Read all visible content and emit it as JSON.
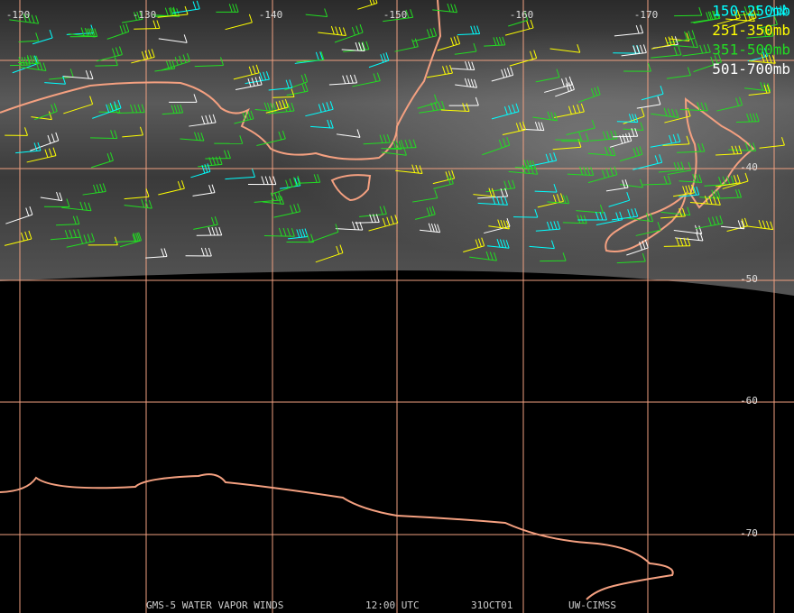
{
  "longitude_labels": [
    "-120",
    "-130",
    "-140",
    "-150",
    "-160",
    "-170"
  ],
  "latitude_labels": [
    "-40",
    "-50",
    "-60",
    "-70"
  ],
  "legend": [
    {
      "label": "150-250mb",
      "color": "#00ffff"
    },
    {
      "label": "251-350mb",
      "color": "#ffff00"
    },
    {
      "label": "351-500mb",
      "color": "#22dd22"
    },
    {
      "label": "501-700mb",
      "color": "#ffffff"
    }
  ],
  "footer": [
    "GMS-5 WATER VAPOR WINDS",
    "12:00 UTC",
    "31OCT01",
    "UW-CIMSS"
  ]
}
